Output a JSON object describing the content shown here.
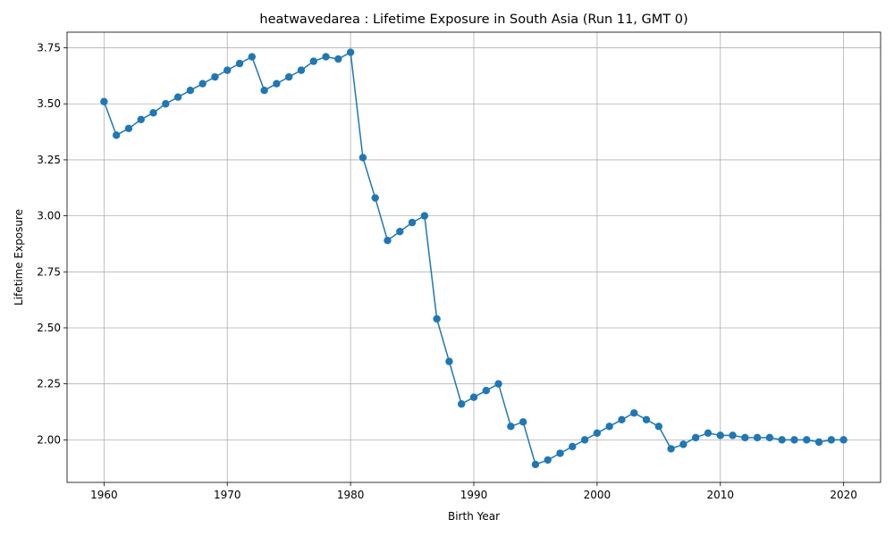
{
  "chart_data": {
    "type": "line",
    "title": "heatwavedarea : Lifetime Exposure in South Asia (Run 11, GMT 0)",
    "xlabel": "Birth Year",
    "ylabel": "Lifetime Exposure",
    "xlim": [
      1957,
      2023
    ],
    "ylim": [
      1.81,
      3.82
    ],
    "x_ticks": [
      1960,
      1970,
      1980,
      1990,
      2000,
      2010,
      2020
    ],
    "y_ticks": [
      2.0,
      2.25,
      2.5,
      2.75,
      3.0,
      3.25,
      3.5,
      3.75
    ],
    "y_tick_labels": [
      "2.00",
      "2.25",
      "2.50",
      "2.75",
      "3.00",
      "3.25",
      "3.50",
      "3.75"
    ],
    "grid": true,
    "legend": "none",
    "series_color": "#1f77b4",
    "marker": "circle",
    "x": [
      1960,
      1961,
      1962,
      1963,
      1964,
      1965,
      1966,
      1967,
      1968,
      1969,
      1970,
      1971,
      1972,
      1973,
      1974,
      1975,
      1976,
      1977,
      1978,
      1979,
      1980,
      1981,
      1982,
      1983,
      1984,
      1985,
      1986,
      1987,
      1988,
      1989,
      1990,
      1991,
      1992,
      1993,
      1994,
      1995,
      1996,
      1997,
      1998,
      1999,
      2000,
      2001,
      2002,
      2003,
      2004,
      2005,
      2006,
      2007,
      2008,
      2009,
      2010,
      2011,
      2012,
      2013,
      2014,
      2015,
      2016,
      2017,
      2018,
      2019,
      2020
    ],
    "y": [
      3.51,
      3.36,
      3.39,
      3.43,
      3.46,
      3.5,
      3.53,
      3.56,
      3.59,
      3.62,
      3.65,
      3.68,
      3.71,
      3.56,
      3.59,
      3.62,
      3.65,
      3.69,
      3.71,
      3.7,
      3.73,
      3.26,
      3.08,
      2.89,
      2.93,
      2.97,
      3.0,
      2.54,
      2.35,
      2.16,
      2.19,
      2.22,
      2.25,
      2.06,
      2.08,
      1.89,
      1.91,
      1.94,
      1.97,
      2.0,
      2.03,
      2.06,
      2.09,
      2.12,
      2.09,
      2.06,
      1.96,
      1.98,
      2.01,
      2.03,
      2.02,
      2.02,
      2.01,
      2.01,
      2.01,
      2.0,
      2.0,
      2.0,
      1.99,
      2.0,
      2.0
    ]
  }
}
